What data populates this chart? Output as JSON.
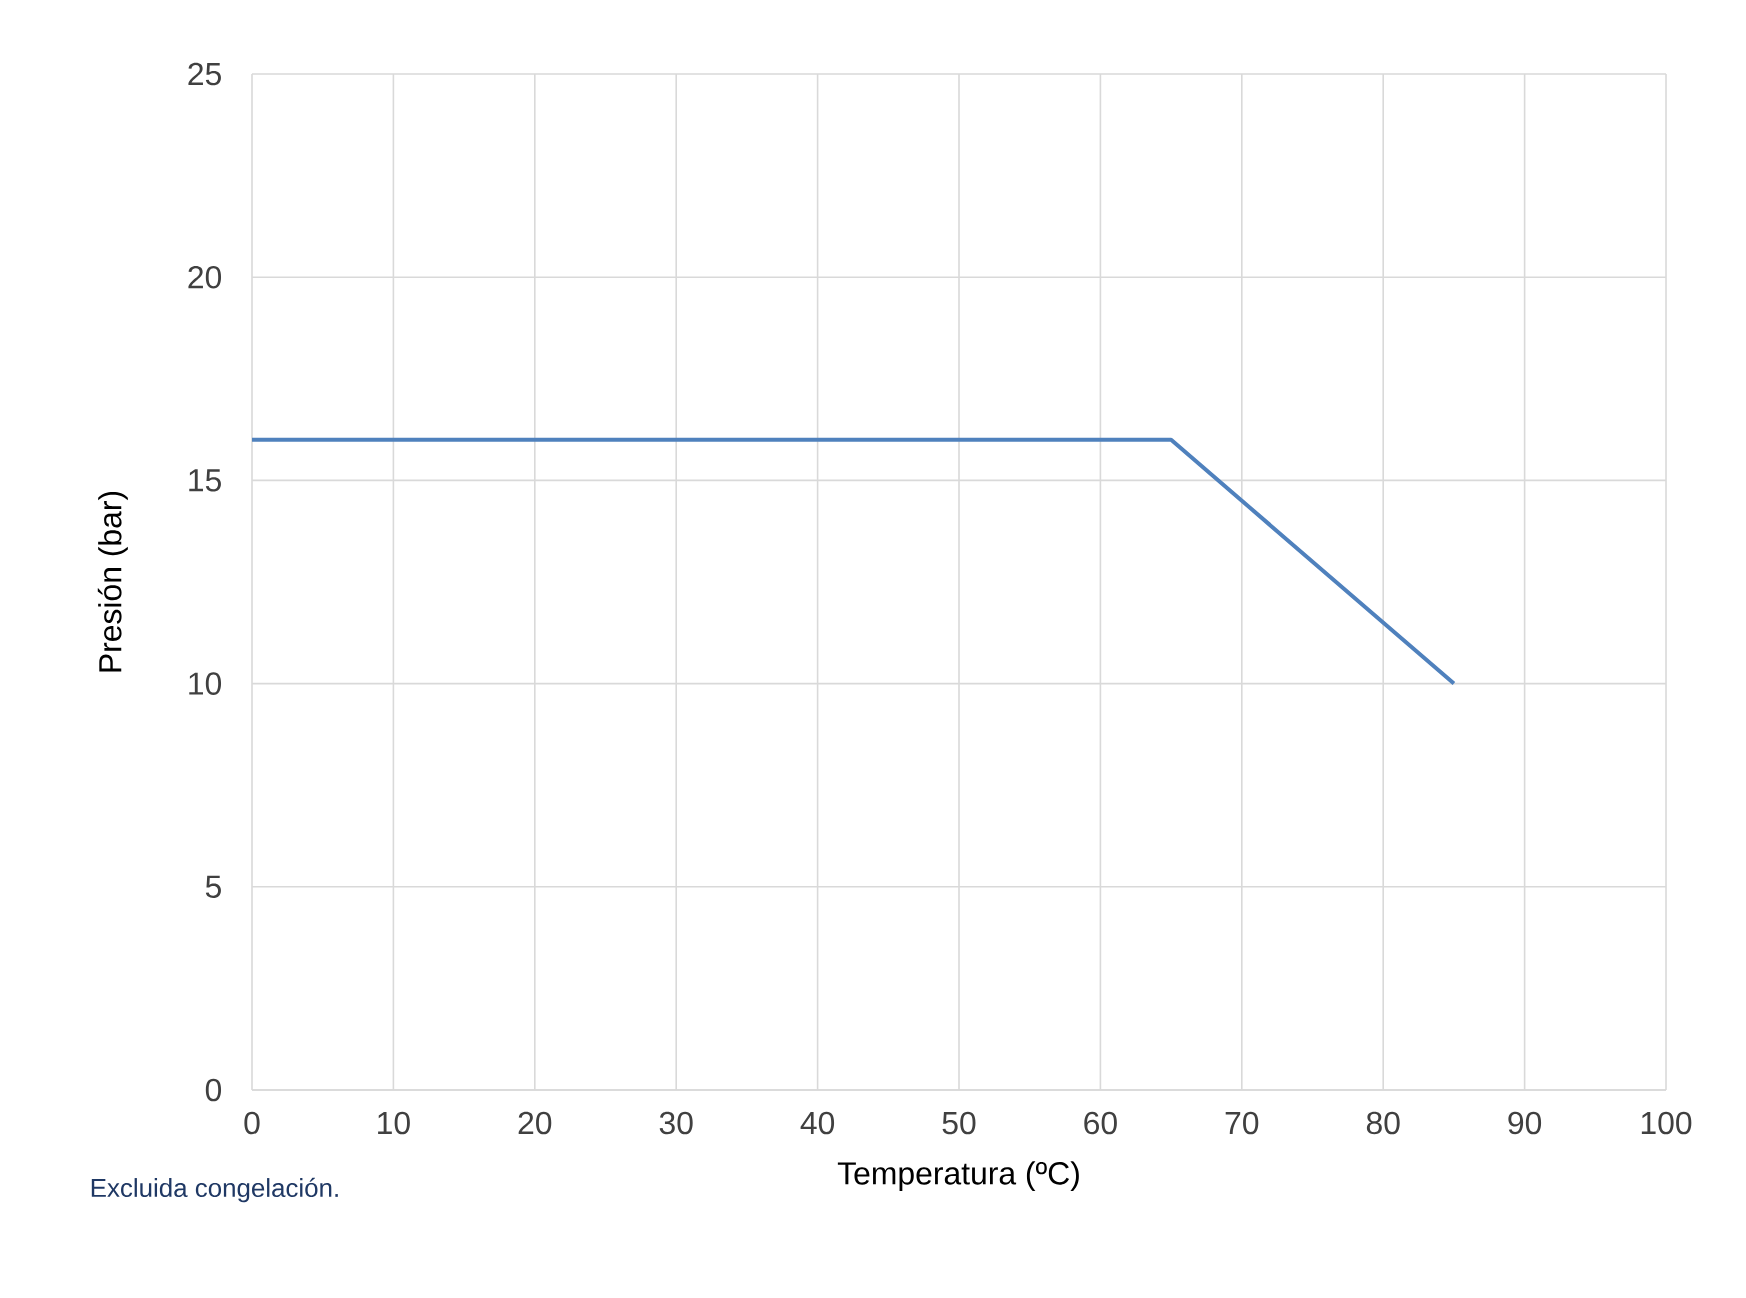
{
  "chart_data": {
    "type": "line",
    "xlabel": "Temperatura (ºC)",
    "ylabel": "Presión (bar)",
    "annotations": [
      "Excluida congelación."
    ],
    "series": [
      {
        "color": "#4f81bd",
        "x": [
          0,
          65,
          85
        ],
        "values": [
          16,
          16,
          10
        ]
      }
    ],
    "xlim": [
      0,
      100
    ],
    "xticks": [
      0,
      10,
      20,
      30,
      40,
      50,
      60,
      70,
      80,
      90,
      100
    ],
    "ylim": [
      0,
      25
    ],
    "yticks": [
      0,
      5,
      10,
      15,
      20,
      25
    ],
    "grid": true,
    "marker": "none",
    "line_style": "solid"
  }
}
